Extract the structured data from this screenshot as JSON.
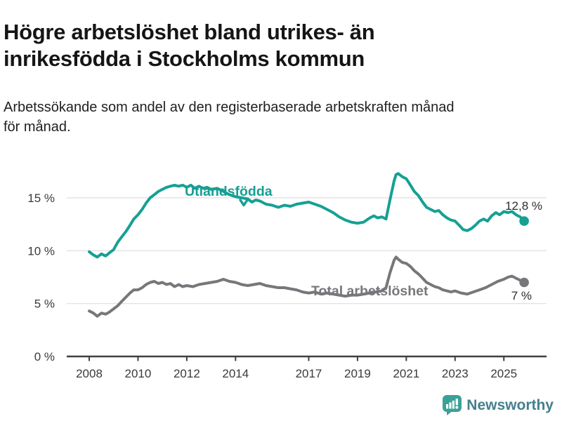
{
  "header": {
    "title": "Högre arbetslöshet bland utrikes- än\ninrikesfödda i Stockholms kommun",
    "subtitle": "Arbetssökande som andel av den registerbaserade arbetskraften månad\nför månad."
  },
  "chart_data": {
    "type": "line",
    "title": "Högre arbetslöshet bland utrikes- än inrikesfödda i Stockholms kommun",
    "xlabel": "",
    "ylabel": "%",
    "xlim": [
      2008,
      2026
    ],
    "ylim": [
      0,
      17.5
    ],
    "grid": "horizontal",
    "legend_position": "inline-labels",
    "y_ticks": [
      {
        "value": 0,
        "label": "0 %"
      },
      {
        "value": 5,
        "label": "5 %"
      },
      {
        "value": 10,
        "label": "10 %"
      },
      {
        "value": 15,
        "label": "15 %"
      }
    ],
    "x_ticks": [
      {
        "value": 2008,
        "label": "2008"
      },
      {
        "value": 2010,
        "label": "2010"
      },
      {
        "value": 2012,
        "label": "2012"
      },
      {
        "value": 2014,
        "label": "2014"
      },
      {
        "value": 2017,
        "label": "2017"
      },
      {
        "value": 2019,
        "label": "2019"
      },
      {
        "value": 2021,
        "label": "2021"
      },
      {
        "value": 2023,
        "label": "2023"
      },
      {
        "value": 2025,
        "label": "2025"
      }
    ],
    "series": [
      {
        "name": "Utlandsfödda",
        "color": "#16a094",
        "end_label": "12,8 %",
        "points": [
          [
            2008.0,
            9.9
          ],
          [
            2008.17,
            9.6
          ],
          [
            2008.33,
            9.4
          ],
          [
            2008.5,
            9.7
          ],
          [
            2008.67,
            9.5
          ],
          [
            2008.83,
            9.8
          ],
          [
            2009.0,
            10.1
          ],
          [
            2009.17,
            10.8
          ],
          [
            2009.33,
            11.3
          ],
          [
            2009.5,
            11.8
          ],
          [
            2009.67,
            12.4
          ],
          [
            2009.83,
            13.0
          ],
          [
            2010.0,
            13.4
          ],
          [
            2010.17,
            13.9
          ],
          [
            2010.33,
            14.5
          ],
          [
            2010.5,
            15.0
          ],
          [
            2010.67,
            15.3
          ],
          [
            2010.83,
            15.6
          ],
          [
            2011.0,
            15.8
          ],
          [
            2011.17,
            16.0
          ],
          [
            2011.33,
            16.1
          ],
          [
            2011.5,
            16.2
          ],
          [
            2011.67,
            16.1
          ],
          [
            2011.83,
            16.2
          ],
          [
            2012.0,
            16.0
          ],
          [
            2012.17,
            16.2
          ],
          [
            2012.33,
            15.9
          ],
          [
            2012.5,
            16.1
          ],
          [
            2012.67,
            15.9
          ],
          [
            2012.83,
            16.0
          ],
          [
            2013.0,
            15.8
          ],
          [
            2013.25,
            15.9
          ],
          [
            2013.5,
            15.6
          ],
          [
            2013.75,
            15.3
          ],
          [
            2014.0,
            15.1
          ],
          [
            2014.25,
            15.0
          ],
          [
            2014.5,
            14.9
          ],
          [
            2014.67,
            14.6
          ],
          [
            2014.83,
            14.8
          ],
          [
            2015.0,
            14.7
          ],
          [
            2015.25,
            14.4
          ],
          [
            2015.5,
            14.3
          ],
          [
            2015.75,
            14.1
          ],
          [
            2016.0,
            14.3
          ],
          [
            2016.25,
            14.2
          ],
          [
            2016.5,
            14.4
          ],
          [
            2016.75,
            14.5
          ],
          [
            2017.0,
            14.6
          ],
          [
            2017.25,
            14.4
          ],
          [
            2017.5,
            14.2
          ],
          [
            2017.75,
            13.9
          ],
          [
            2018.0,
            13.6
          ],
          [
            2018.25,
            13.2
          ],
          [
            2018.5,
            12.9
          ],
          [
            2018.75,
            12.7
          ],
          [
            2019.0,
            12.6
          ],
          [
            2019.25,
            12.7
          ],
          [
            2019.5,
            13.1
          ],
          [
            2019.67,
            13.3
          ],
          [
            2019.83,
            13.1
          ],
          [
            2020.0,
            13.2
          ],
          [
            2020.17,
            13.0
          ],
          [
            2020.33,
            14.8
          ],
          [
            2020.5,
            16.6
          ],
          [
            2020.58,
            17.2
          ],
          [
            2020.67,
            17.3
          ],
          [
            2020.83,
            17.0
          ],
          [
            2021.0,
            16.8
          ],
          [
            2021.17,
            16.2
          ],
          [
            2021.33,
            15.6
          ],
          [
            2021.5,
            15.2
          ],
          [
            2021.67,
            14.6
          ],
          [
            2021.83,
            14.1
          ],
          [
            2022.0,
            13.9
          ],
          [
            2022.17,
            13.7
          ],
          [
            2022.33,
            13.8
          ],
          [
            2022.5,
            13.4
          ],
          [
            2022.67,
            13.1
          ],
          [
            2022.83,
            12.9
          ],
          [
            2023.0,
            12.8
          ],
          [
            2023.17,
            12.4
          ],
          [
            2023.33,
            12.0
          ],
          [
            2023.5,
            11.9
          ],
          [
            2023.67,
            12.1
          ],
          [
            2023.83,
            12.4
          ],
          [
            2024.0,
            12.8
          ],
          [
            2024.17,
            13.0
          ],
          [
            2024.33,
            12.8
          ],
          [
            2024.5,
            13.3
          ],
          [
            2024.67,
            13.6
          ],
          [
            2024.83,
            13.4
          ],
          [
            2025.0,
            13.7
          ],
          [
            2025.17,
            13.6
          ],
          [
            2025.33,
            13.7
          ],
          [
            2025.5,
            13.4
          ],
          [
            2025.67,
            13.2
          ],
          [
            2025.83,
            12.8
          ]
        ]
      },
      {
        "name": "Total arbetslöshet",
        "color": "#77777b",
        "end_label": "7 %",
        "points": [
          [
            2008.0,
            4.3
          ],
          [
            2008.17,
            4.1
          ],
          [
            2008.33,
            3.8
          ],
          [
            2008.5,
            4.1
          ],
          [
            2008.67,
            4.0
          ],
          [
            2008.83,
            4.2
          ],
          [
            2009.0,
            4.5
          ],
          [
            2009.17,
            4.8
          ],
          [
            2009.33,
            5.2
          ],
          [
            2009.5,
            5.6
          ],
          [
            2009.67,
            6.0
          ],
          [
            2009.83,
            6.3
          ],
          [
            2010.0,
            6.3
          ],
          [
            2010.17,
            6.5
          ],
          [
            2010.33,
            6.8
          ],
          [
            2010.5,
            7.0
          ],
          [
            2010.67,
            7.1
          ],
          [
            2010.83,
            6.9
          ],
          [
            2011.0,
            7.0
          ],
          [
            2011.17,
            6.8
          ],
          [
            2011.33,
            6.9
          ],
          [
            2011.5,
            6.6
          ],
          [
            2011.67,
            6.8
          ],
          [
            2011.83,
            6.6
          ],
          [
            2012.0,
            6.7
          ],
          [
            2012.25,
            6.6
          ],
          [
            2012.5,
            6.8
          ],
          [
            2012.75,
            6.9
          ],
          [
            2013.0,
            7.0
          ],
          [
            2013.25,
            7.1
          ],
          [
            2013.5,
            7.3
          ],
          [
            2013.75,
            7.1
          ],
          [
            2014.0,
            7.0
          ],
          [
            2014.25,
            6.8
          ],
          [
            2014.5,
            6.7
          ],
          [
            2014.75,
            6.8
          ],
          [
            2015.0,
            6.9
          ],
          [
            2015.25,
            6.7
          ],
          [
            2015.5,
            6.6
          ],
          [
            2015.75,
            6.5
          ],
          [
            2016.0,
            6.5
          ],
          [
            2016.25,
            6.4
          ],
          [
            2016.5,
            6.3
          ],
          [
            2016.75,
            6.1
          ],
          [
            2017.0,
            6.0
          ],
          [
            2017.25,
            6.1
          ],
          [
            2017.5,
            5.9
          ],
          [
            2017.75,
            6.0
          ],
          [
            2018.0,
            5.9
          ],
          [
            2018.25,
            5.8
          ],
          [
            2018.5,
            5.7
          ],
          [
            2018.75,
            5.8
          ],
          [
            2019.0,
            5.8
          ],
          [
            2019.25,
            5.9
          ],
          [
            2019.5,
            6.0
          ],
          [
            2019.75,
            6.1
          ],
          [
            2020.0,
            6.2
          ],
          [
            2020.17,
            6.5
          ],
          [
            2020.33,
            7.9
          ],
          [
            2020.5,
            9.1
          ],
          [
            2020.58,
            9.4
          ],
          [
            2020.67,
            9.2
          ],
          [
            2020.83,
            8.9
          ],
          [
            2021.0,
            8.8
          ],
          [
            2021.17,
            8.5
          ],
          [
            2021.33,
            8.1
          ],
          [
            2021.5,
            7.8
          ],
          [
            2021.67,
            7.4
          ],
          [
            2021.83,
            7.0
          ],
          [
            2022.0,
            6.8
          ],
          [
            2022.17,
            6.6
          ],
          [
            2022.33,
            6.5
          ],
          [
            2022.5,
            6.3
          ],
          [
            2022.67,
            6.2
          ],
          [
            2022.83,
            6.1
          ],
          [
            2023.0,
            6.2
          ],
          [
            2023.25,
            6.0
          ],
          [
            2023.5,
            5.9
          ],
          [
            2023.75,
            6.1
          ],
          [
            2024.0,
            6.3
          ],
          [
            2024.25,
            6.5
          ],
          [
            2024.5,
            6.8
          ],
          [
            2024.75,
            7.1
          ],
          [
            2025.0,
            7.3
          ],
          [
            2025.17,
            7.5
          ],
          [
            2025.33,
            7.6
          ],
          [
            2025.5,
            7.4
          ],
          [
            2025.67,
            7.2
          ],
          [
            2025.83,
            7.0
          ]
        ]
      }
    ]
  },
  "footer": {
    "brand": "Newsworthy"
  },
  "colors": {
    "series_utlandsfodda": "#16a094",
    "series_total": "#77777b",
    "grid": "#e2e2e2",
    "axis": "#3f3f3f",
    "tick_text": "#3a3a3a",
    "value_label": "#2d2d2d",
    "text_dark": "#151515",
    "brand_icon": "#3aa199",
    "brand_text": "#44808e"
  }
}
